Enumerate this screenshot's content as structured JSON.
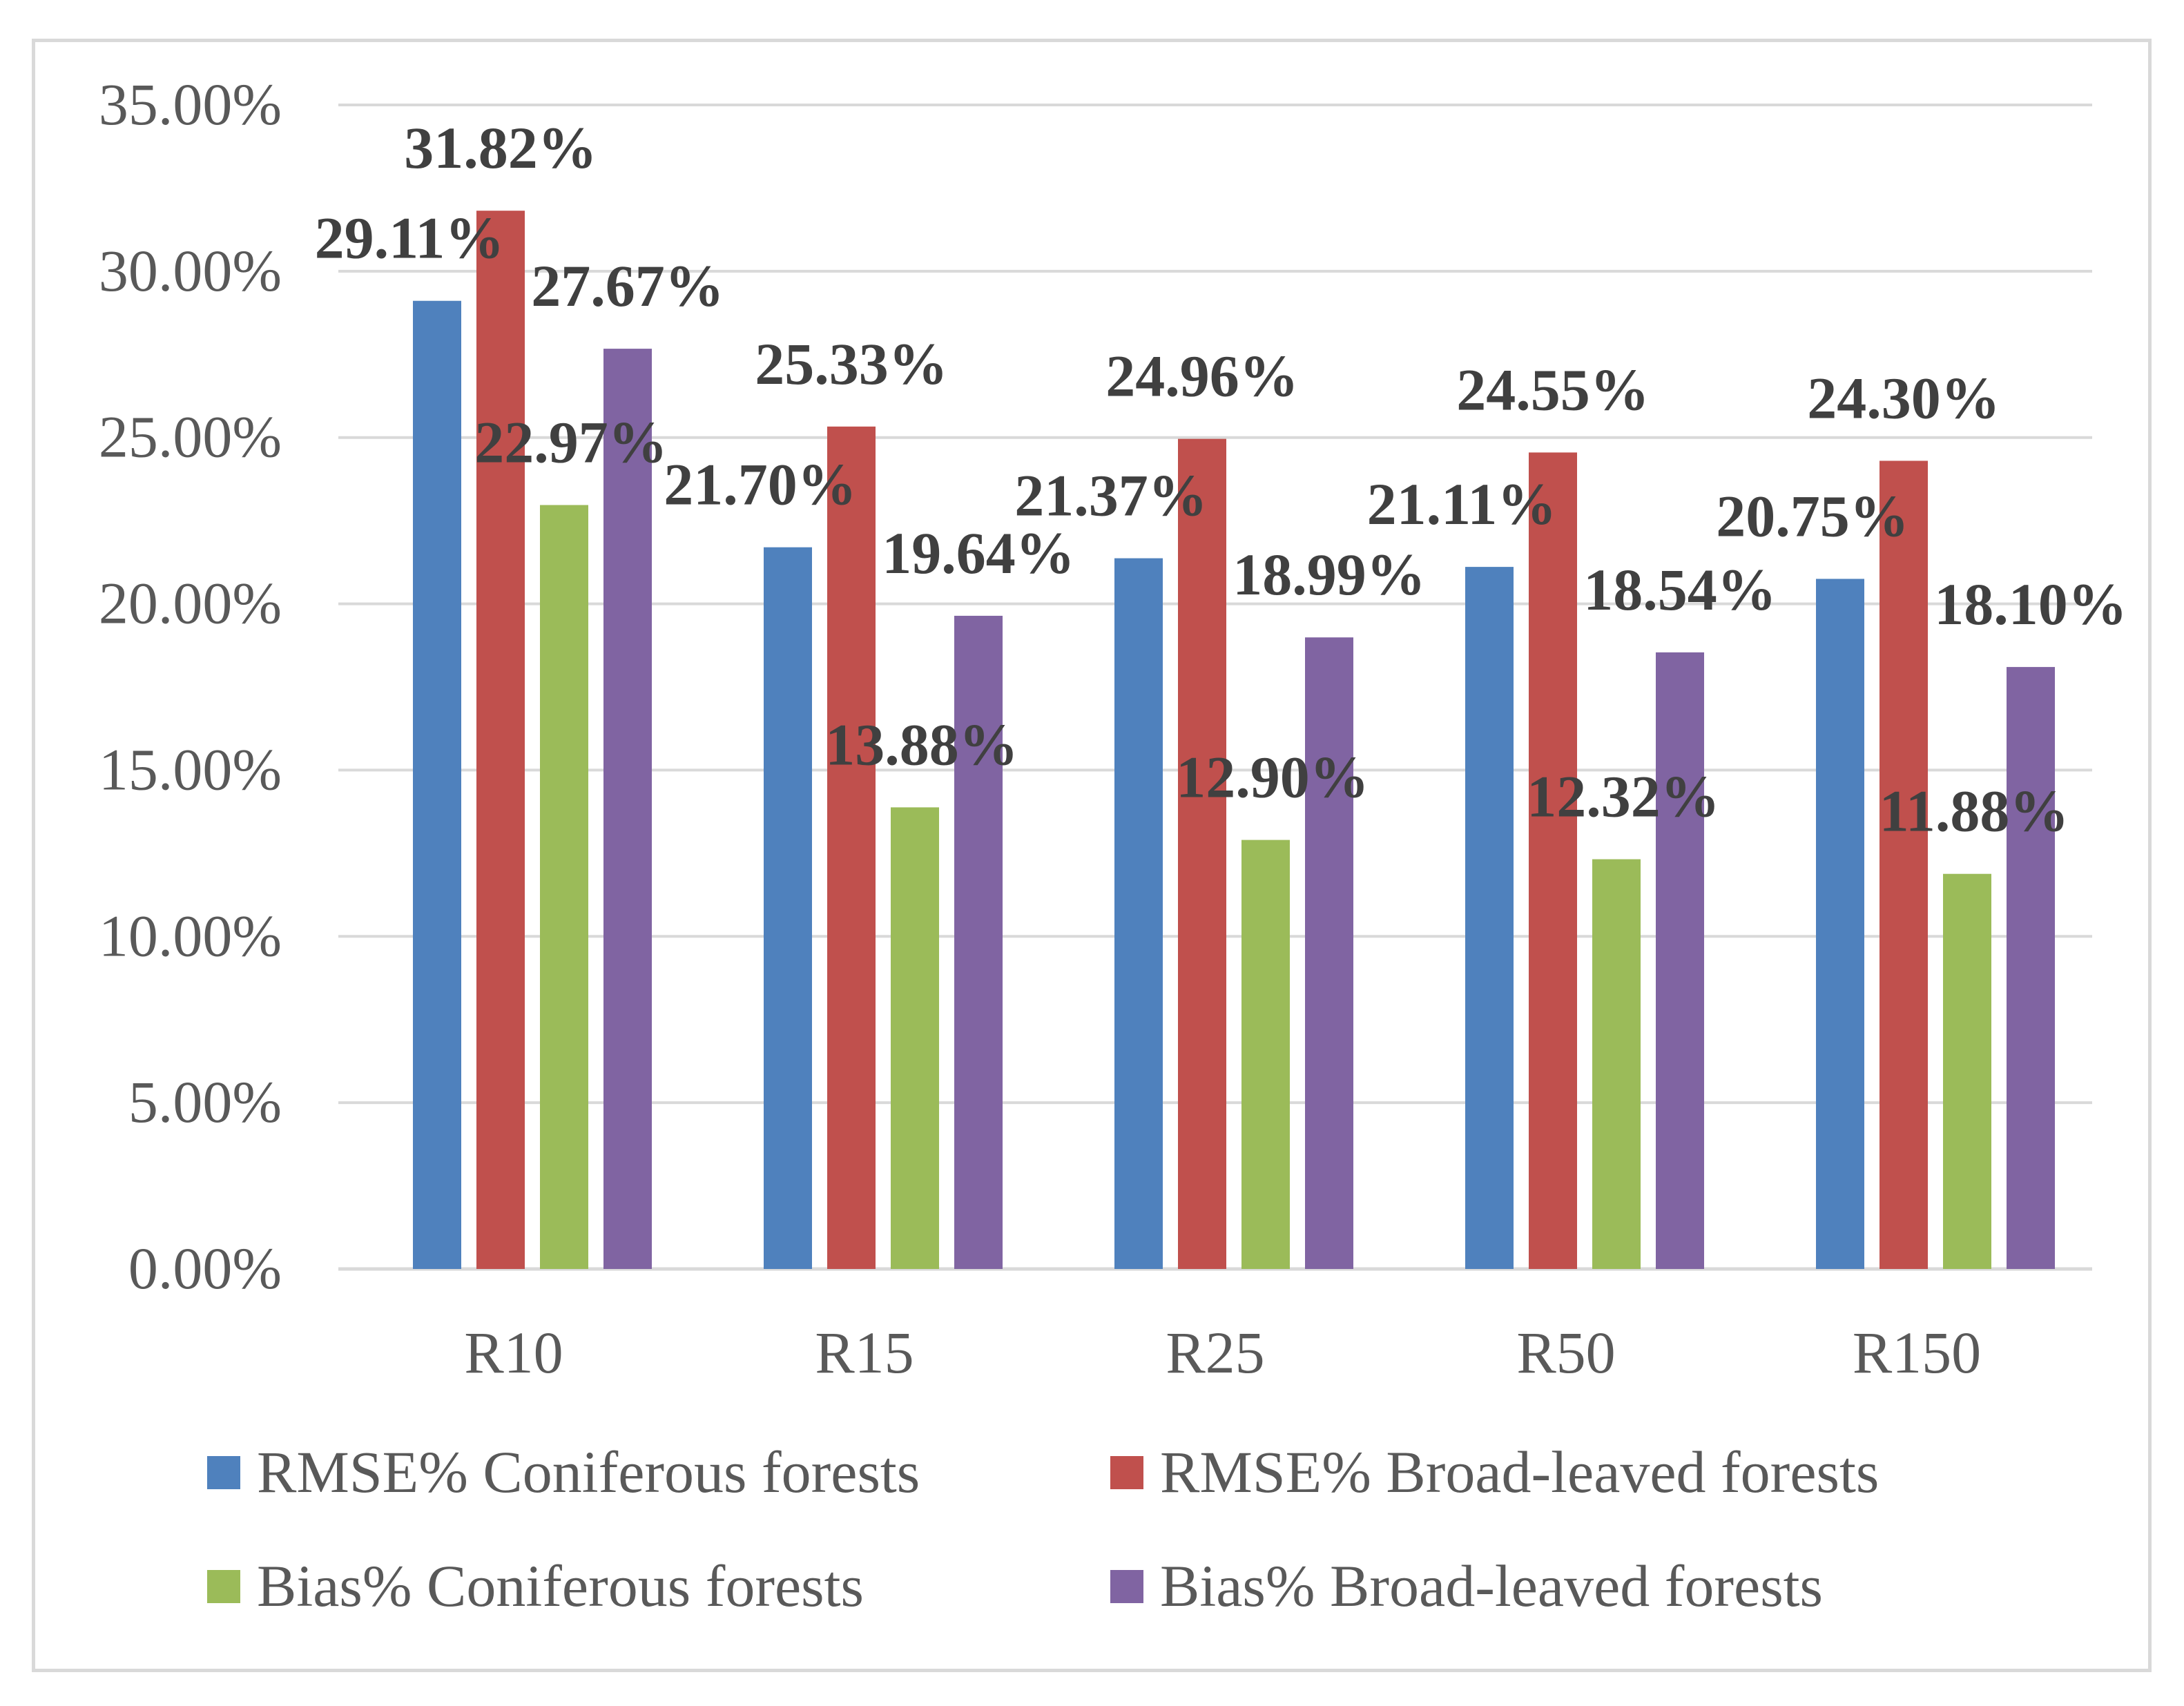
{
  "chart_data": {
    "type": "bar",
    "title": "",
    "xlabel": "",
    "ylabel": "",
    "ylim": [
      0,
      35
    ],
    "y_tick_values": [
      0,
      5,
      10,
      15,
      20,
      25,
      30,
      35
    ],
    "y_tick_labels": [
      "0.00%",
      "5.00%",
      "10.00%",
      "15.00%",
      "20.00%",
      "25.00%",
      "30.00%",
      "35.00%"
    ],
    "grid": true,
    "legend_position": "bottom",
    "categories": [
      "R10",
      "R15",
      "R25",
      "R50",
      "R150"
    ],
    "series": [
      {
        "name": "RMSE% Coniferous forests",
        "color": "#4f81bd",
        "values": [
          29.11,
          21.7,
          21.37,
          21.11,
          20.75
        ],
        "labels": [
          "29.11%",
          "21.70%",
          "21.37%",
          "21.11%",
          "20.75%"
        ]
      },
      {
        "name": "RMSE% Broad-leaved forests",
        "color": "#c0504d",
        "values": [
          31.82,
          25.33,
          24.96,
          24.55,
          24.3
        ],
        "labels": [
          "31.82%",
          "25.33%",
          "24.96%",
          "24.55%",
          "24.30%"
        ]
      },
      {
        "name": "Bias% Coniferous forests",
        "color": "#9bbb59",
        "values": [
          22.97,
          13.88,
          12.9,
          12.32,
          11.88
        ],
        "labels": [
          "22.97%",
          "13.88%",
          "12.90%",
          "12.32%",
          "11.88%"
        ]
      },
      {
        "name": "Bias% Broad-leaved forests",
        "color": "#8064a2",
        "values": [
          27.67,
          19.64,
          18.99,
          18.54,
          18.1
        ],
        "labels": [
          "27.67%",
          "19.64%",
          "18.99%",
          "18.54%",
          "18.10%"
        ]
      }
    ]
  }
}
